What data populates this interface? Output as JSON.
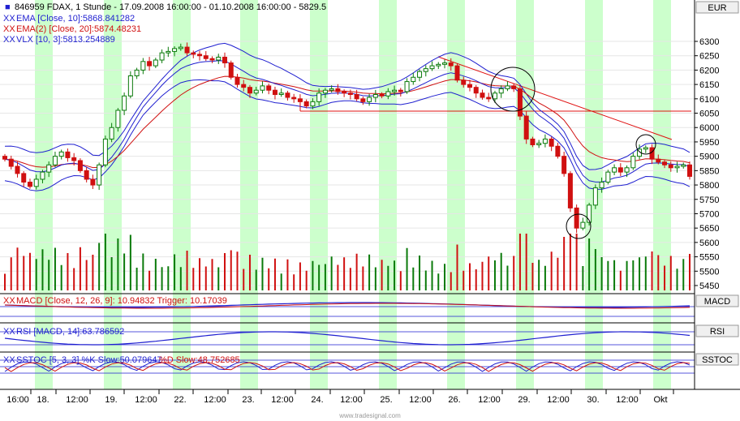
{
  "header": {
    "title": "846959  FDAX, 1 Stunde - 17.09.2008 16:00:00 - 01.10.2008 16:00:00 - 5829.5",
    "currency": "EUR",
    "legend": [
      {
        "prefix": "XX",
        "text": "EMA [Close, 10]:5868.841282",
        "color": "#1f1fd0"
      },
      {
        "prefix": "XX",
        "text": "EMA(2) [Close, 20]:5874.48231",
        "color": "#d01010"
      },
      {
        "prefix": "XX",
        "text": "VLX [10, 3]:5813.254889",
        "color": "#1f1fd0"
      }
    ]
  },
  "panels": {
    "macd": {
      "name": "MACD",
      "legend_prefix": "XX",
      "legend": "MACD [Close, 12, 26, 9]: 10.94832  Trigger: 10.17039"
    },
    "rsi": {
      "name": "RSI",
      "legend_prefix": "XX",
      "legend": "RSI [MACD, 14]:63.786592"
    },
    "sstoc": {
      "name": "SSTOC",
      "legend_prefix": "XX",
      "legend_a": "SSTOC [5, 3, 3]  %K Slow:50.079647",
      "legend_b": "%D Slow:48.752685"
    }
  },
  "watermark": "www.tradesignal.com",
  "colors": {
    "up": "#0a7a0a",
    "down": "#d01010",
    "ema10": "#1f1fd0",
    "ema20": "#d01010",
    "band": "#1f1fd0",
    "shade": "#ccffcc"
  },
  "chart_data": {
    "type": "candlestick",
    "y_ticks": [
      6300,
      6250,
      6200,
      6150,
      6100,
      6050,
      6000,
      5950,
      5900,
      5850,
      5800,
      5750,
      5700,
      5650,
      5600,
      5550,
      5500,
      5450
    ],
    "ylim": [
      5430,
      6340
    ],
    "x_labels": [
      "16:00",
      "18.",
      "12:00",
      "19.",
      "12:00",
      "22.",
      "12:00",
      "23.",
      "12:00",
      "24.",
      "12:00",
      "25.",
      "12:00",
      "26.",
      "12:00",
      "29.",
      "12:00",
      "30.",
      "12:00",
      "Okt"
    ],
    "close": [
      5890,
      5865,
      5840,
      5810,
      5795,
      5820,
      5845,
      5870,
      5900,
      5915,
      5895,
      5885,
      5850,
      5820,
      5800,
      5870,
      5960,
      6000,
      6060,
      6110,
      6180,
      6200,
      6230,
      6215,
      6235,
      6260,
      6265,
      6275,
      6280,
      6260,
      6255,
      6250,
      6240,
      6235,
      6245,
      6225,
      6175,
      6150,
      6140,
      6120,
      6130,
      6145,
      6130,
      6115,
      6120,
      6105,
      6100,
      6090,
      6075,
      6090,
      6120,
      6130,
      6135,
      6125,
      6120,
      6115,
      6100,
      6090,
      6105,
      6115,
      6110,
      6125,
      6130,
      6125,
      6160,
      6175,
      6195,
      6205,
      6215,
      6220,
      6225,
      6215,
      6165,
      6150,
      6140,
      6120,
      6105,
      6100,
      6120,
      6135,
      6145,
      6135,
      6040,
      5960,
      5940,
      5945,
      5960,
      5935,
      5900,
      5840,
      5720,
      5650,
      5670,
      5730,
      5790,
      5810,
      5845,
      5860,
      5845,
      5860,
      5900,
      5925,
      5930,
      5890,
      5880,
      5870,
      5860,
      5865,
      5870,
      5830
    ]
  }
}
